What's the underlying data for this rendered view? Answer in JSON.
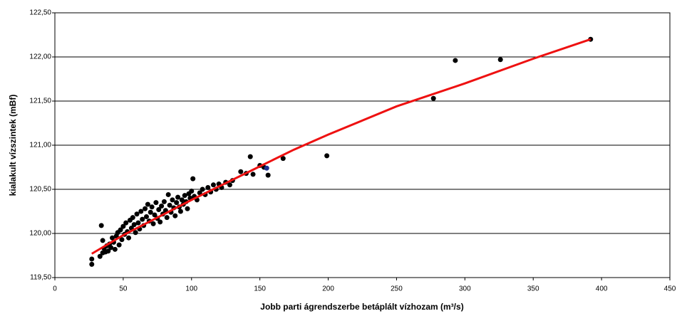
{
  "chart_data": {
    "type": "scatter",
    "x_label": "Jobb parti ágrendszerbe betáplált vízhozam (m³/s)",
    "y_label": "kialakult vízszintek (mBf)",
    "xlim": [
      0,
      450
    ],
    "xticks": [
      0,
      50,
      100,
      150,
      200,
      250,
      300,
      350,
      400,
      450
    ],
    "ylim": [
      119.5,
      122.5
    ],
    "yticks": [
      {
        "value": 119.5,
        "label": "119,50"
      },
      {
        "value": 120.0,
        "label": "120,00"
      },
      {
        "value": 120.5,
        "label": "120,50"
      },
      {
        "value": 121.0,
        "label": "121,00"
      },
      {
        "value": 121.5,
        "label": "121,50"
      },
      {
        "value": 122.0,
        "label": "122,00"
      },
      {
        "value": 122.5,
        "label": "122,50"
      }
    ],
    "grid": true,
    "series": [
      {
        "style": "markers",
        "color": "#000000",
        "x": [
          27,
          27,
          33,
          34,
          35,
          35,
          36,
          37,
          38,
          39,
          40,
          41,
          42,
          43,
          44,
          45,
          46,
          47,
          48,
          49,
          50,
          51,
          52,
          53,
          54,
          55,
          56,
          57,
          58,
          59,
          60,
          61,
          62,
          63,
          64,
          65,
          66,
          67,
          68,
          69,
          70,
          71,
          72,
          73,
          74,
          75,
          76,
          77,
          78,
          79,
          80,
          81,
          82,
          83,
          84,
          85,
          86,
          87,
          88,
          89,
          90,
          91,
          92,
          93,
          94,
          95,
          96,
          97,
          98,
          99,
          100,
          101,
          102,
          104,
          106,
          108,
          110,
          112,
          114,
          116,
          118,
          120,
          122,
          125,
          128,
          130,
          136,
          140,
          143,
          145,
          150,
          153,
          156,
          167,
          199,
          277,
          293,
          326,
          392
        ],
        "values": [
          119.71,
          119.65,
          119.74,
          120.09,
          119.78,
          119.92,
          119.83,
          119.79,
          119.86,
          119.8,
          119.88,
          119.84,
          119.95,
          119.9,
          119.82,
          119.97,
          120.01,
          119.87,
          120.04,
          119.93,
          120.08,
          119.99,
          120.12,
          120.02,
          119.95,
          120.15,
          120.06,
          120.18,
          120.1,
          120.01,
          120.22,
          120.12,
          120.05,
          120.25,
          120.16,
          120.09,
          120.28,
          120.19,
          120.33,
          120.14,
          120.24,
          120.3,
          120.11,
          120.21,
          120.35,
          120.17,
          120.27,
          120.13,
          120.31,
          120.22,
          120.36,
          120.26,
          120.18,
          120.44,
          120.32,
          120.24,
          120.38,
          120.29,
          120.2,
          120.35,
          120.41,
          120.3,
          120.25,
          120.38,
          120.33,
          120.43,
          120.36,
          120.28,
          120.45,
          120.4,
          120.48,
          120.62,
          120.42,
          120.38,
          120.46,
          120.5,
          120.44,
          120.52,
          120.47,
          120.55,
          120.5,
          120.56,
          120.52,
          120.58,
          120.55,
          120.6,
          120.7,
          120.68,
          120.87,
          120.67,
          120.77,
          120.75,
          120.66,
          120.85,
          120.88,
          121.53,
          121.96,
          121.97,
          122.2
        ]
      },
      {
        "style": "markers",
        "color": "#1f2f8f",
        "x": [
          155
        ],
        "values": [
          120.74
        ]
      },
      {
        "style": "line",
        "color": "#ee1111",
        "x": [
          27,
          50,
          75,
          100,
          125,
          150,
          175,
          200,
          250,
          300,
          350,
          392
        ],
        "values": [
          119.77,
          119.98,
          120.18,
          120.38,
          120.57,
          120.76,
          120.95,
          121.12,
          121.44,
          121.7,
          121.98,
          122.2
        ]
      }
    ]
  }
}
